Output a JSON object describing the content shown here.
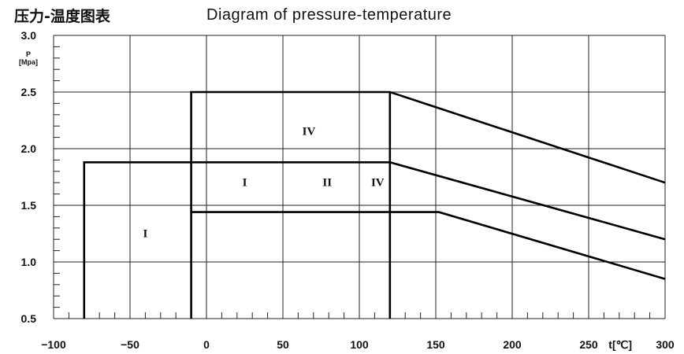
{
  "chart_data": {
    "type": "line",
    "title_cn": "压力-温度图表",
    "title_en": "Diagram of pressure-temperature",
    "xlabel": "t[℃]",
    "ylabel_symbol": "P",
    "ylabel_unit": "[Mpa]",
    "xlim": [
      -100,
      300
    ],
    "ylim": [
      0.5,
      3.0
    ],
    "x_ticks": [
      "−100",
      "−50",
      "0",
      "50",
      "100",
      "150",
      "200",
      "250",
      "300"
    ],
    "y_ticks": [
      "0.5",
      "1.0",
      "1.5",
      "2.0",
      "2.5",
      "3.0"
    ],
    "grid": true,
    "series": [
      {
        "values": [
          [
            -80,
            0.5
          ],
          [
            -80,
            1.88
          ],
          [
            120,
            1.88
          ],
          [
            300,
            1.2
          ]
        ]
      },
      {
        "values": [
          [
            -10,
            0.5
          ],
          [
            -10,
            2.5
          ],
          [
            120,
            2.5
          ],
          [
            300,
            1.7
          ]
        ]
      },
      {
        "values": [
          [
            -10,
            1.44
          ],
          [
            152,
            1.44
          ],
          [
            300,
            0.85
          ]
        ]
      },
      {
        "values": [
          [
            120,
            0.5
          ],
          [
            120,
            2.5
          ]
        ]
      }
    ],
    "region_labels": [
      {
        "text": "IV",
        "x": 67,
        "y": 2.12
      },
      {
        "text": "I",
        "x": 25,
        "y": 1.67
      },
      {
        "text": "II",
        "x": 79,
        "y": 1.67
      },
      {
        "text": "IV",
        "x": 112,
        "y": 1.67
      },
      {
        "text": "I",
        "x": -40,
        "y": 1.22
      }
    ]
  }
}
